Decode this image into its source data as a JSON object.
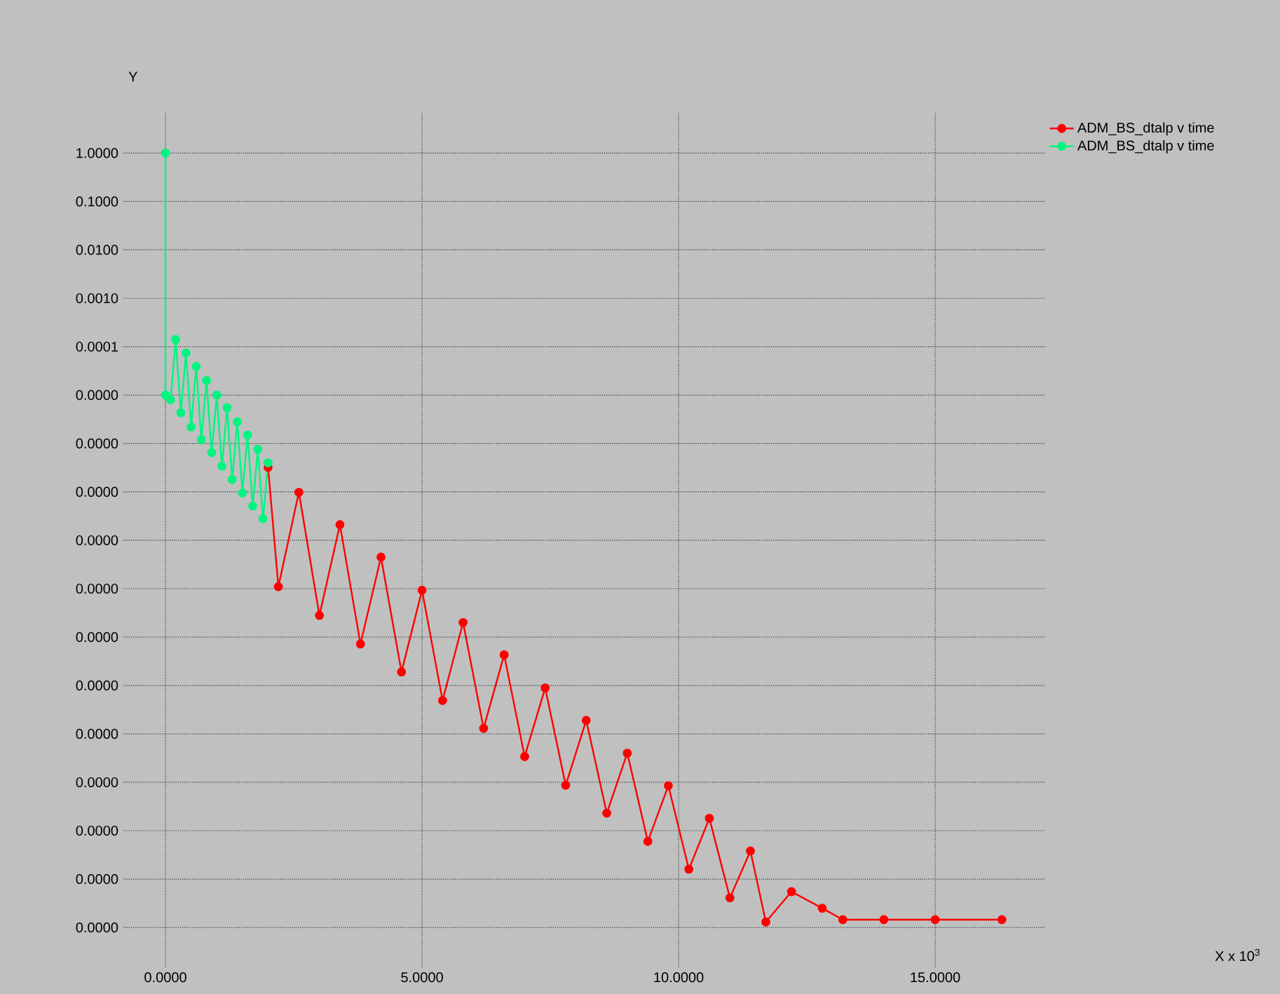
{
  "chart_data": {
    "type": "line",
    "annotations": [
      "X x 10$^{3}$"
    ],
    "ylabel": "Y",
    "log": "y",
    "grid": true,
    "legend": "top right",
    "marker": "circle",
    "line_style": "solid",
    "xlim": [
      -0.82,
      17.13
    ],
    "ylim": [
      1.5e-17,
      7
    ],
    "xticks": [
      {
        "value": 0,
        "label": "0.0000"
      },
      {
        "value": 5,
        "label": "5.0000"
      },
      {
        "value": 10,
        "label": "10.0000"
      },
      {
        "value": 15,
        "label": "15.0000"
      }
    ],
    "yticks": [
      {
        "value": 1,
        "label": "1.0000"
      },
      {
        "value": 0.1,
        "label": "0.1000"
      },
      {
        "value": 0.01,
        "label": "0.0100"
      },
      {
        "value": 0.001,
        "label": "0.0010"
      },
      {
        "value": 0.0001,
        "label": "0.0001"
      },
      {
        "value": 1e-05,
        "label": "0.0000"
      },
      {
        "value": 1e-06,
        "label": "0.0000"
      },
      {
        "value": 1e-07,
        "label": "0.0000"
      },
      {
        "value": 1e-08,
        "label": "0.0000"
      },
      {
        "value": 1e-09,
        "label": "0.0000"
      },
      {
        "value": 1e-10,
        "label": "0.0000"
      },
      {
        "value": 1e-11,
        "label": "0.0000"
      },
      {
        "value": 1e-12,
        "label": "0.0000"
      },
      {
        "value": 1e-13,
        "label": "0.0000"
      },
      {
        "value": 1e-14,
        "label": "0.0000"
      },
      {
        "value": 1e-15,
        "label": "0.0000"
      },
      {
        "value": 1e-16,
        "label": "0.0000"
      }
    ],
    "series": [
      {
        "name": "ADM_BS_dtalp v time",
        "color": "#ff0000",
        "x": [
          2.0,
          2.2,
          2.6,
          3.0,
          3.4,
          3.8,
          4.2,
          4.6,
          5.0,
          5.4,
          5.8,
          6.2,
          6.6,
          7.0,
          7.4,
          7.8,
          8.2,
          8.6,
          9.0,
          9.4,
          9.8,
          10.2,
          10.6,
          11.0,
          11.4,
          11.7,
          12.2,
          12.8,
          13.2,
          14.0,
          15.0,
          16.3
        ],
        "values": [
          3.2e-07,
          1.1e-09,
          9.8e-08,
          2.8e-10,
          2.1e-08,
          7.2e-11,
          4.5e-09,
          1.9e-11,
          9.3e-10,
          4.9e-12,
          2e-10,
          1.3e-12,
          4.3e-11,
          3.4e-13,
          8.9e-12,
          8.7e-14,
          1.9e-12,
          2.3e-14,
          4e-13,
          6e-15,
          8.5e-14,
          1.6e-15,
          1.8e-14,
          4.1e-16,
          3.8e-15,
          1.3e-16,
          5.5e-16,
          2.5e-16,
          1.45e-16,
          1.45e-16,
          1.45e-16,
          1.45e-16
        ]
      },
      {
        "name": "ADM_BS_dtalp v time",
        "color": "#00f57f",
        "x": [
          0.0,
          0.0,
          0.1,
          0.2,
          0.3,
          0.4,
          0.5,
          0.6,
          0.7,
          0.8,
          0.9,
          1.0,
          1.1,
          1.2,
          1.3,
          1.4,
          1.5,
          1.6,
          1.7,
          1.8,
          1.9,
          2.0
        ],
        "values": [
          1,
          1e-05,
          8e-06,
          0.00014,
          4.3e-06,
          7.4e-05,
          2.2e-06,
          3.9e-05,
          1.2e-06,
          2e-05,
          6.5e-07,
          1e-05,
          3.4e-07,
          5.5e-06,
          1.8e-07,
          2.8e-06,
          9.5e-08,
          1.5e-06,
          5.1e-08,
          7.6e-07,
          2.8e-08,
          4e-07
        ]
      }
    ]
  }
}
